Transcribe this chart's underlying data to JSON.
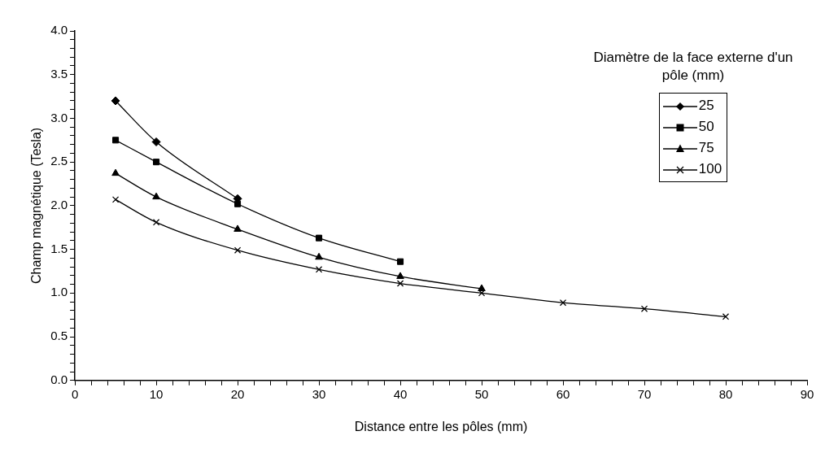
{
  "chart_data": {
    "type": "line",
    "xlabel": "Distance entre les pôles (mm)",
    "ylabel": "Champ magnétique (Tesla)",
    "legend_title": "Diamètre de la face externe d'un pôle (mm)",
    "legend": "top right",
    "grid": false,
    "line_style": "solid",
    "xlim": [
      0,
      90
    ],
    "ylim": [
      0,
      4
    ],
    "xticks": [
      0,
      {
        "value": 2,
        "label": null
      },
      {
        "value": 4,
        "label": null
      },
      {
        "value": 6,
        "label": null
      },
      {
        "value": 8,
        "label": null
      },
      10,
      {
        "value": 12,
        "label": null
      },
      {
        "value": 14,
        "label": null
      },
      {
        "value": 16,
        "label": null
      },
      {
        "value": 18,
        "label": null
      },
      20,
      {
        "value": 22,
        "label": null
      },
      {
        "value": 24,
        "label": null
      },
      {
        "value": 26,
        "label": null
      },
      {
        "value": 28,
        "label": null
      },
      30,
      {
        "value": 32,
        "label": null
      },
      {
        "value": 34,
        "label": null
      },
      {
        "value": 36,
        "label": null
      },
      {
        "value": 38,
        "label": null
      },
      40,
      {
        "value": 42,
        "label": null
      },
      {
        "value": 44,
        "label": null
      },
      {
        "value": 46,
        "label": null
      },
      {
        "value": 48,
        "label": null
      },
      50,
      {
        "value": 52,
        "label": null
      },
      {
        "value": 54,
        "label": null
      },
      {
        "value": 56,
        "label": null
      },
      {
        "value": 58,
        "label": null
      },
      60,
      {
        "value": 62,
        "label": null
      },
      {
        "value": 64,
        "label": null
      },
      {
        "value": 66,
        "label": null
      },
      {
        "value": 68,
        "label": null
      },
      70,
      {
        "value": 72,
        "label": null
      },
      {
        "value": 74,
        "label": null
      },
      {
        "value": 76,
        "label": null
      },
      {
        "value": 78,
        "label": null
      },
      80,
      {
        "value": 82,
        "label": null
      },
      {
        "value": 84,
        "label": null
      },
      {
        "value": 86,
        "label": null
      },
      {
        "value": 88,
        "label": null
      },
      90
    ],
    "yticks": [
      {
        "value": 0,
        "label": "0.0"
      },
      {
        "value": 0.1,
        "label": null
      },
      {
        "value": 0.2,
        "label": null
      },
      {
        "value": 0.3,
        "label": null
      },
      {
        "value": 0.4,
        "label": null
      },
      0.5,
      {
        "value": 0.6,
        "label": null
      },
      {
        "value": 0.7,
        "label": null
      },
      {
        "value": 0.8,
        "label": null
      },
      {
        "value": 0.9,
        "label": null
      },
      {
        "value": 1,
        "label": "1.0"
      },
      {
        "value": 1.1,
        "label": null
      },
      {
        "value": 1.2,
        "label": null
      },
      {
        "value": 1.3,
        "label": null
      },
      {
        "value": 1.4,
        "label": null
      },
      1.5,
      {
        "value": 1.6,
        "label": null
      },
      {
        "value": 1.7,
        "label": null
      },
      {
        "value": 1.8,
        "label": null
      },
      {
        "value": 1.9,
        "label": null
      },
      {
        "value": 2,
        "label": "2.0"
      },
      {
        "value": 2.1,
        "label": null
      },
      {
        "value": 2.2,
        "label": null
      },
      {
        "value": 2.3,
        "label": null
      },
      {
        "value": 2.4,
        "label": null
      },
      2.5,
      {
        "value": 2.6,
        "label": null
      },
      {
        "value": 2.7,
        "label": null
      },
      {
        "value": 2.8,
        "label": null
      },
      {
        "value": 2.9,
        "label": null
      },
      {
        "value": 3,
        "label": "3.0"
      },
      {
        "value": 3.1,
        "label": null
      },
      {
        "value": 3.2,
        "label": null
      },
      {
        "value": 3.3,
        "label": null
      },
      {
        "value": 3.4,
        "label": null
      },
      3.5,
      {
        "value": 3.6,
        "label": null
      },
      {
        "value": 3.7,
        "label": null
      },
      {
        "value": 3.8,
        "label": null
      },
      {
        "value": 3.9,
        "label": null
      },
      {
        "value": 4,
        "label": "4.0"
      }
    ],
    "series": [
      {
        "name": "25",
        "color": "#000000",
        "marker": "diamond",
        "x": [
          5,
          10,
          20
        ],
        "values": [
          3.2,
          2.73,
          2.08
        ]
      },
      {
        "name": "50",
        "color": "#000000",
        "marker": "square",
        "x": [
          5,
          10,
          20,
          30,
          40
        ],
        "values": [
          2.75,
          2.5,
          2.02,
          1.63,
          1.36
        ]
      },
      {
        "name": "75",
        "color": "#000000",
        "marker": "triangle",
        "x": [
          5,
          10,
          20,
          30,
          40,
          50
        ],
        "values": [
          2.37,
          2.1,
          1.73,
          1.41,
          1.19,
          1.05
        ]
      },
      {
        "name": "100",
        "color": "#000000",
        "marker": "cross",
        "x": [
          5,
          10,
          20,
          30,
          40,
          50,
          60,
          70,
          80
        ],
        "values": [
          2.07,
          1.81,
          1.49,
          1.27,
          1.11,
          1.0,
          0.89,
          0.82,
          0.73
        ]
      }
    ]
  }
}
